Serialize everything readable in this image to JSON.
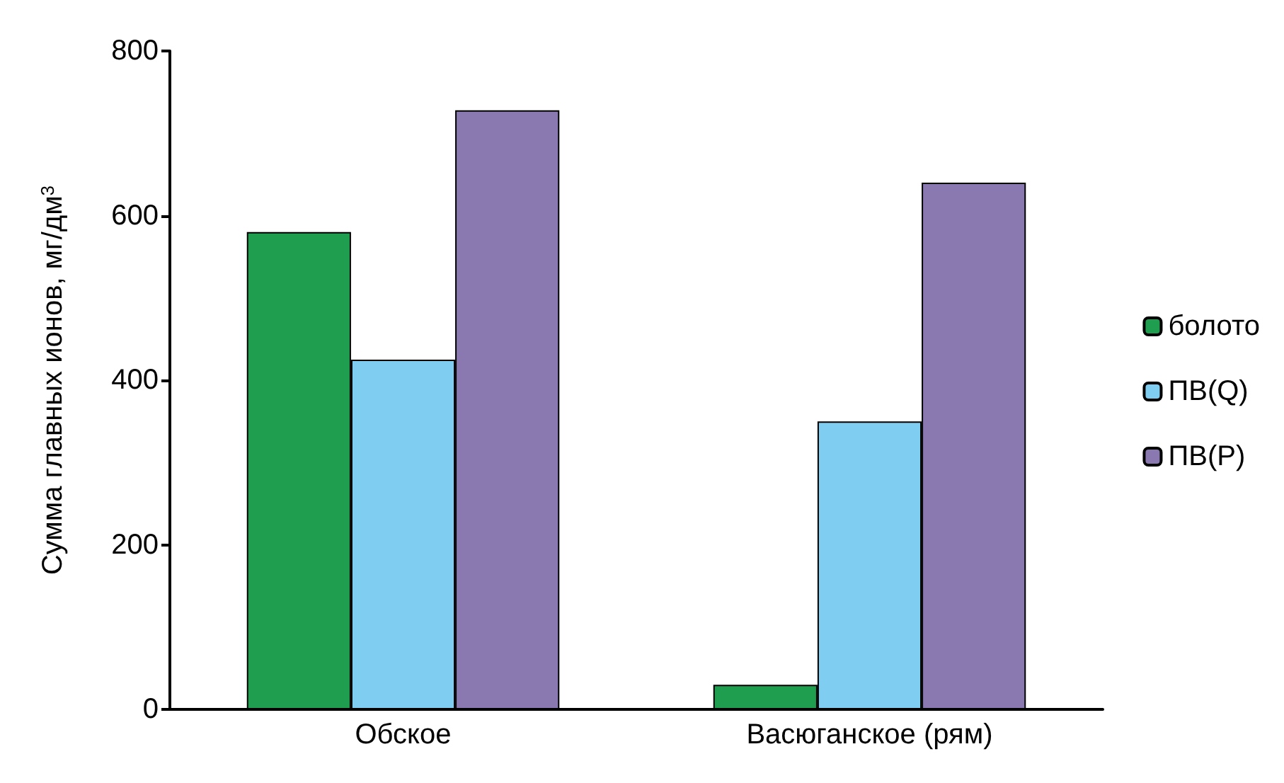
{
  "chart_data": {
    "type": "bar",
    "ylabel": "Сумма главных ионов, мг/дм$^{3}$",
    "categories": [
      "Обское",
      "Васюганское (рям)"
    ],
    "series": [
      {
        "name": "болото",
        "color": "#1f9e50",
        "values": [
          580,
          30
        ]
      },
      {
        "name": "ПВ(Q)",
        "color": "#7fcdf0",
        "values": [
          425,
          350
        ]
      },
      {
        "name": "ПВ(Р)",
        "color": "#8a78b0",
        "values": [
          728,
          640
        ]
      }
    ],
    "ylim": [
      0,
      800
    ],
    "yticks": [
      0,
      200,
      400,
      600,
      800
    ],
    "grid": false,
    "legend": "right"
  }
}
